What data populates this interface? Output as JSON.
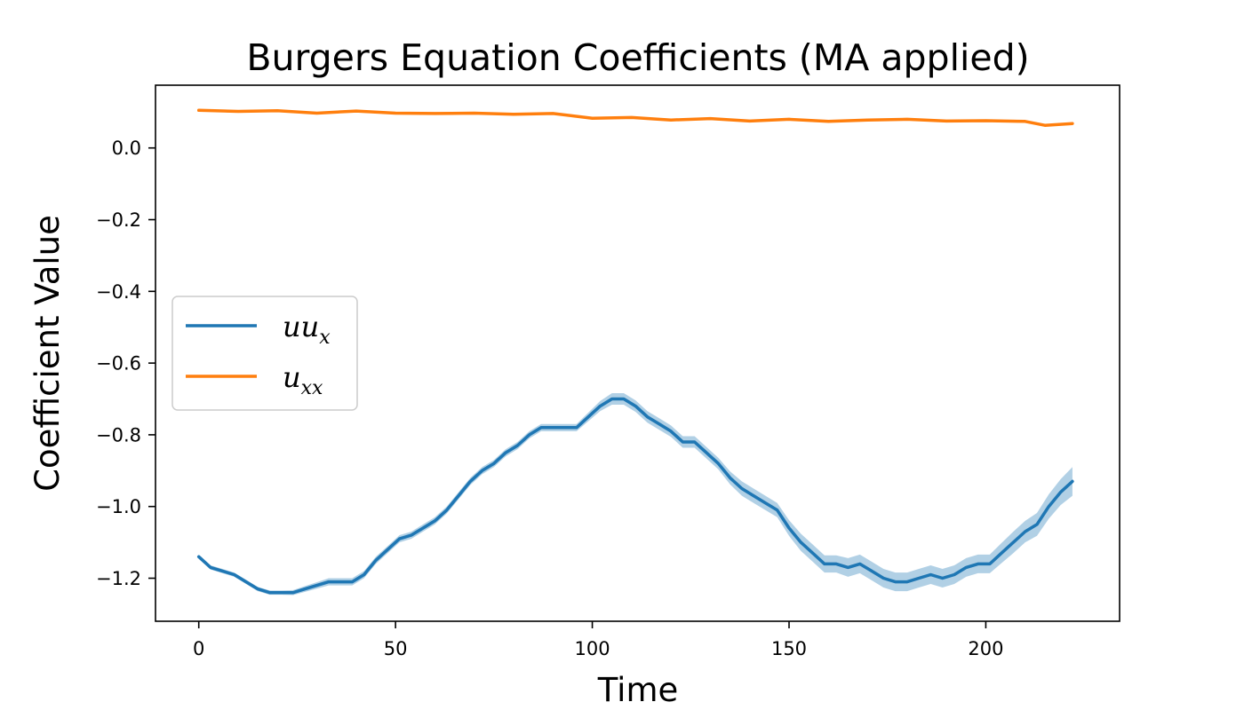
{
  "chart_data": {
    "type": "line",
    "title": "Burgers Equation Coefficients (MA applied)",
    "xlabel": "Time",
    "ylabel": "Coefficient Value",
    "xlim": [
      -11,
      234
    ],
    "ylim": [
      -1.32,
      0.175
    ],
    "x_ticks": [
      0,
      50,
      100,
      150,
      200
    ],
    "x_tick_labels": [
      "0",
      "50",
      "100",
      "150",
      "200"
    ],
    "y_ticks": [
      0.0,
      -0.2,
      -0.4,
      -0.6,
      -0.8,
      -1.0,
      -1.2
    ],
    "y_tick_labels": [
      "0.0",
      "−0.2",
      "−0.4",
      "−0.6",
      "−0.8",
      "−1.0",
      "−1.2"
    ],
    "grid": false,
    "legend_position": "center-left",
    "series": [
      {
        "name": "uu",
        "name_subscript": "x",
        "color": "#1f77b4",
        "band_color": "#1f77b4",
        "band_opacity": 0.35,
        "x": [
          0,
          3,
          6,
          9,
          12,
          15,
          18,
          21,
          24,
          27,
          30,
          33,
          36,
          39,
          42,
          45,
          48,
          51,
          54,
          57,
          60,
          63,
          66,
          69,
          72,
          75,
          78,
          81,
          84,
          87,
          90,
          93,
          96,
          99,
          102,
          105,
          108,
          111,
          114,
          117,
          120,
          123,
          126,
          129,
          132,
          135,
          138,
          141,
          144,
          147,
          150,
          153,
          156,
          159,
          162,
          165,
          168,
          171,
          174,
          177,
          180,
          183,
          186,
          189,
          192,
          195,
          198,
          201,
          204,
          207,
          210,
          213,
          216,
          219,
          222
        ],
        "values": [
          -1.14,
          -1.17,
          -1.18,
          -1.19,
          -1.21,
          -1.23,
          -1.24,
          -1.24,
          -1.24,
          -1.23,
          -1.22,
          -1.21,
          -1.21,
          -1.21,
          -1.19,
          -1.15,
          -1.12,
          -1.09,
          -1.08,
          -1.06,
          -1.04,
          -1.01,
          -0.97,
          -0.93,
          -0.9,
          -0.88,
          -0.85,
          -0.83,
          -0.8,
          -0.78,
          -0.78,
          -0.78,
          -0.78,
          -0.75,
          -0.72,
          -0.7,
          -0.7,
          -0.72,
          -0.75,
          -0.77,
          -0.79,
          -0.82,
          -0.82,
          -0.85,
          -0.88,
          -0.92,
          -0.95,
          -0.97,
          -0.99,
          -1.01,
          -1.06,
          -1.1,
          -1.13,
          -1.16,
          -1.16,
          -1.17,
          -1.16,
          -1.18,
          -1.2,
          -1.21,
          -1.21,
          -1.2,
          -1.19,
          -1.2,
          -1.19,
          -1.17,
          -1.16,
          -1.16,
          -1.13,
          -1.1,
          -1.07,
          -1.05,
          -1.0,
          -0.96,
          -0.93
        ],
        "band_halfwidth": [
          0.006,
          0.006,
          0.006,
          0.006,
          0.006,
          0.006,
          0.006,
          0.006,
          0.007,
          0.008,
          0.009,
          0.01,
          0.01,
          0.01,
          0.01,
          0.01,
          0.01,
          0.01,
          0.01,
          0.01,
          0.01,
          0.01,
          0.01,
          0.01,
          0.01,
          0.01,
          0.01,
          0.01,
          0.01,
          0.01,
          0.01,
          0.01,
          0.01,
          0.012,
          0.014,
          0.016,
          0.016,
          0.016,
          0.016,
          0.016,
          0.016,
          0.016,
          0.016,
          0.016,
          0.016,
          0.018,
          0.02,
          0.02,
          0.02,
          0.02,
          0.022,
          0.024,
          0.024,
          0.024,
          0.024,
          0.026,
          0.026,
          0.026,
          0.026,
          0.026,
          0.026,
          0.026,
          0.026,
          0.026,
          0.026,
          0.026,
          0.026,
          0.026,
          0.028,
          0.03,
          0.03,
          0.032,
          0.034,
          0.036,
          0.04
        ]
      },
      {
        "name": "u",
        "name_subscript": "xx",
        "color": "#ff7f0e",
        "x": [
          0,
          10,
          20,
          30,
          40,
          50,
          60,
          70,
          80,
          90,
          100,
          110,
          120,
          130,
          140,
          150,
          160,
          170,
          180,
          190,
          200,
          210,
          215,
          222
        ],
        "values": [
          0.105,
          0.102,
          0.104,
          0.097,
          0.103,
          0.097,
          0.096,
          0.097,
          0.094,
          0.096,
          0.083,
          0.085,
          0.078,
          0.082,
          0.075,
          0.08,
          0.074,
          0.078,
          0.08,
          0.075,
          0.076,
          0.074,
          0.063,
          0.068
        ]
      }
    ]
  }
}
